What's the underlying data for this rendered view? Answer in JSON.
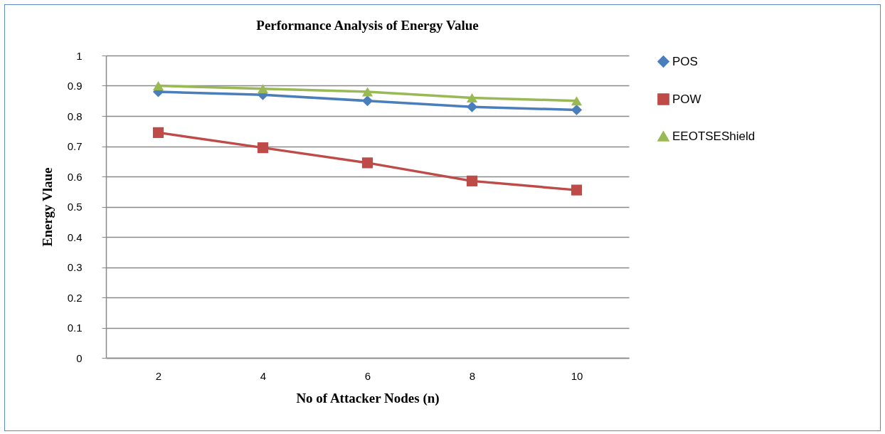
{
  "chart_data": {
    "type": "line",
    "title": "Performance Analysis of Energy Value",
    "xlabel": "No of Attacker Nodes (n)",
    "ylabel": "Energy Vlaue",
    "categories": [
      "2",
      "4",
      "6",
      "8",
      "10"
    ],
    "series": [
      {
        "name": "POS",
        "color": "#4a7ebb",
        "marker": "diamond",
        "values": [
          0.88,
          0.87,
          0.85,
          0.83,
          0.82
        ]
      },
      {
        "name": "POW",
        "color": "#be4b48",
        "marker": "square",
        "values": [
          0.745,
          0.695,
          0.645,
          0.585,
          0.555
        ]
      },
      {
        "name": "EEOTSEShield",
        "color": "#98b954",
        "marker": "triangle",
        "values": [
          0.9,
          0.89,
          0.88,
          0.86,
          0.85
        ]
      }
    ],
    "ylim": [
      0,
      1
    ],
    "yticks": [
      0,
      0.1,
      0.2,
      0.3,
      0.4,
      0.5,
      0.6,
      0.7,
      0.8,
      0.9,
      1
    ],
    "grid": "y",
    "legend": "right",
    "line_style": "solid"
  }
}
